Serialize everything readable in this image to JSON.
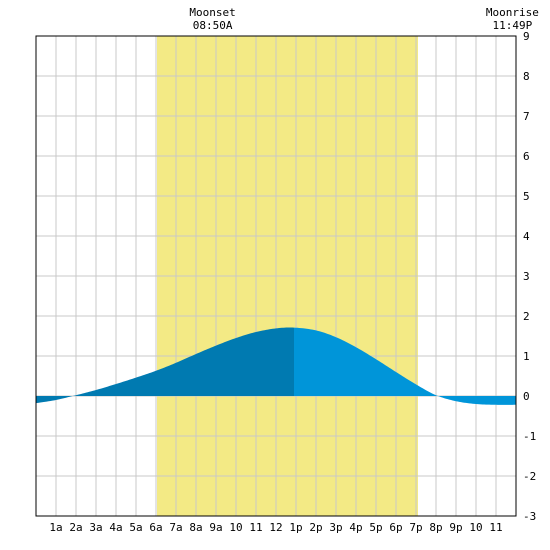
{
  "chart_data": {
    "type": "area",
    "x_ticks": [
      "1a",
      "2a",
      "3a",
      "4a",
      "5a",
      "6a",
      "7a",
      "8a",
      "9a",
      "10",
      "11",
      "12",
      "1p",
      "2p",
      "3p",
      "4p",
      "5p",
      "6p",
      "7p",
      "8p",
      "9p",
      "10",
      "11"
    ],
    "y_ticks": [
      "9",
      "8",
      "7",
      "6",
      "5",
      "4",
      "3",
      "2",
      "1",
      "0",
      "-1",
      "-2",
      "-3"
    ],
    "ylim": [
      -3,
      9
    ],
    "xlim_hours": [
      0,
      24
    ],
    "grid": true,
    "daylight_band_hours": [
      6.05,
      19.1
    ],
    "moon_events": [
      {
        "label": "Moonset",
        "time": "08:50A",
        "hour": 8.83
      },
      {
        "label": "Moonrise",
        "time": "11:49P",
        "hour": 23.82
      }
    ],
    "tide_curve": {
      "x": [
        0,
        1,
        2,
        3,
        4,
        5,
        6,
        7,
        8,
        9,
        10,
        11,
        12,
        12.9,
        14,
        15,
        16,
        17,
        18,
        19,
        20,
        21,
        22,
        23,
        24
      ],
      "y": [
        -0.18,
        -0.1,
        0.02,
        0.15,
        0.3,
        0.46,
        0.63,
        0.83,
        1.05,
        1.26,
        1.45,
        1.6,
        1.69,
        1.71,
        1.64,
        1.47,
        1.22,
        0.92,
        0.6,
        0.29,
        0.02,
        -0.13,
        -0.2,
        -0.22,
        -0.22
      ]
    },
    "colors": {
      "daylight": "#f3ea85",
      "grid": "#c8c8c8",
      "tide_rising_night": "#0079b0",
      "tide_rising_day": "#007ab1",
      "tide_falling": "#0095d9"
    },
    "split_hour": 12.9
  }
}
